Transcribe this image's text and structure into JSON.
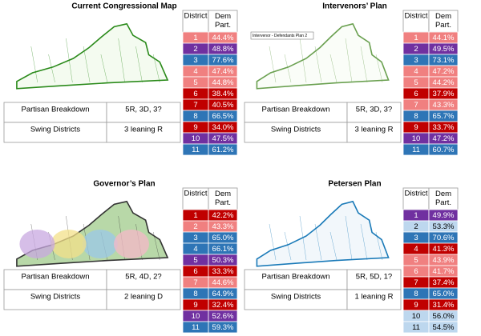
{
  "panels": [
    {
      "title": "Current Congressional Map",
      "breakdown_label": "Partisan Breakdown",
      "breakdown": "5R, 3D, 3?",
      "swing_label": "Swing Districts",
      "swing": "3 leaning R",
      "header": [
        "District",
        "Dem Part."
      ],
      "rows": [
        [
          "1",
          "44.4%",
          "#f08080"
        ],
        [
          "2",
          "48.8%",
          "#7030a0"
        ],
        [
          "3",
          "77.6%",
          "#2e75b6"
        ],
        [
          "4",
          "47.4%",
          "#f08080"
        ],
        [
          "5",
          "44.8%",
          "#f08080"
        ],
        [
          "6",
          "38.4%",
          "#c00000"
        ],
        [
          "7",
          "40.5%",
          "#c00000"
        ],
        [
          "8",
          "66.5%",
          "#2e75b6"
        ],
        [
          "9",
          "34.0%",
          "#c00000"
        ],
        [
          "10",
          "47.5%",
          "#7030a0"
        ],
        [
          "11",
          "61.2%",
          "#2e75b6"
        ]
      ]
    },
    {
      "title": "Intervenors’ Plan",
      "map_label": "Intervenor - Defendants Plan 2",
      "breakdown_label": "Partisan Breakdown",
      "breakdown": "5R, 3D, 3?",
      "swing_label": "Swing Districts",
      "swing": "3 leaning R",
      "header": [
        "District",
        "Dem Part."
      ],
      "rows": [
        [
          "1",
          "44.1%",
          "#f08080"
        ],
        [
          "2",
          "49.5%",
          "#7030a0"
        ],
        [
          "3",
          "73.1%",
          "#2e75b6"
        ],
        [
          "4",
          "47.2%",
          "#f08080"
        ],
        [
          "5",
          "44.2%",
          "#f08080"
        ],
        [
          "6",
          "37.9%",
          "#c00000"
        ],
        [
          "7",
          "43.3%",
          "#f08080"
        ],
        [
          "8",
          "65.7%",
          "#2e75b6"
        ],
        [
          "9",
          "33.7%",
          "#c00000"
        ],
        [
          "10",
          "47.2%",
          "#7030a0"
        ],
        [
          "11",
          "60.7%",
          "#2e75b6"
        ]
      ]
    },
    {
      "title": "Governor’s Plan",
      "breakdown_label": "Partisan Breakdown",
      "breakdown": "5R, 4D, 2?",
      "swing_label": "Swing Districts",
      "swing": "2 leaning D",
      "header": [
        "District",
        "Dem Part."
      ],
      "rows": [
        [
          "1",
          "42.2%",
          "#c00000"
        ],
        [
          "2",
          "43.3%",
          "#f08080"
        ],
        [
          "3",
          "65.0%",
          "#2e75b6"
        ],
        [
          "4",
          "66.1%",
          "#2e75b6"
        ],
        [
          "5",
          "50.3%",
          "#7030a0"
        ],
        [
          "6",
          "33.3%",
          "#c00000"
        ],
        [
          "7",
          "44.6%",
          "#f08080"
        ],
        [
          "8",
          "64.9%",
          "#2e75b6"
        ],
        [
          "9",
          "32.4%",
          "#c00000"
        ],
        [
          "10",
          "52.6%",
          "#7030a0"
        ],
        [
          "11",
          "59.3%",
          "#2e75b6"
        ]
      ]
    },
    {
      "title": "Petersen Plan",
      "breakdown_label": "Partisan Breakdown",
      "breakdown": "5R, 5D, 1?",
      "swing_label": "Swing Districts",
      "swing": "1 leaning R",
      "header": [
        "District",
        "Dem Part."
      ],
      "rows": [
        [
          "1",
          "49.9%",
          "#7030a0"
        ],
        [
          "2",
          "53.3%",
          "#bdd7ee"
        ],
        [
          "3",
          "70.6%",
          "#2e75b6"
        ],
        [
          "4",
          "41.3%",
          "#c00000"
        ],
        [
          "5",
          "43.9%",
          "#f08080"
        ],
        [
          "6",
          "41.7%",
          "#f08080"
        ],
        [
          "7",
          "37.4%",
          "#c00000"
        ],
        [
          "8",
          "65.0%",
          "#2e75b6"
        ],
        [
          "9",
          "31.4%",
          "#c00000"
        ],
        [
          "10",
          "56.0%",
          "#bdd7ee"
        ],
        [
          "11",
          "54.5%",
          "#bdd7ee"
        ]
      ]
    }
  ]
}
